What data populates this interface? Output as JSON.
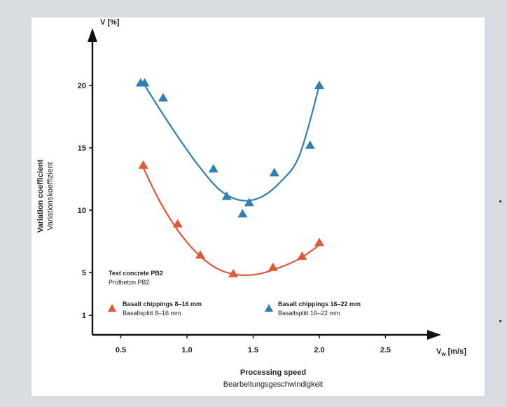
{
  "chart_data": {
    "type": "scatter",
    "title": "",
    "ylabel_en": "Variation coefficient",
    "ylabel_de": "Variationskoeffizient",
    "y_axis_unit": "V [%]",
    "xlabel_en": "Processing speed",
    "xlabel_de": "Bearbeitungsgeschwindigkeit",
    "x_axis_unit": "V",
    "x_axis_unit_sub": "w",
    "x_axis_unit_suffix": "[m/s]",
    "xlim": [
      0,
      3.0
    ],
    "ylim": [
      0,
      24
    ],
    "xticks": [
      "0.5",
      "1.0",
      "1.5",
      "2.0",
      "2.5"
    ],
    "xtick_values": [
      0.5,
      1.0,
      1.5,
      2.0,
      2.5
    ],
    "yticks": [
      "1",
      "5",
      "10",
      "15",
      "20"
    ],
    "ytick_values": [
      1,
      5,
      10,
      15,
      20
    ],
    "grid": false,
    "note": {
      "line1": "Test concrete PB2",
      "line2": "Prüfbeton PB2"
    },
    "series": [
      {
        "name": "Basalt chippings 8–16 mm",
        "name_de": "Basaltsplitt 8–16 mm",
        "color": "#e0573a",
        "marker": "triangle",
        "points": [
          {
            "x": 0.67,
            "y": 13.6
          },
          {
            "x": 0.93,
            "y": 8.9
          },
          {
            "x": 1.1,
            "y": 6.4
          },
          {
            "x": 1.35,
            "y": 4.9
          },
          {
            "x": 1.65,
            "y": 5.4
          },
          {
            "x": 1.87,
            "y": 6.3
          },
          {
            "x": 2.0,
            "y": 7.4
          }
        ],
        "fit": [
          {
            "x": 0.67,
            "y": 13.4
          },
          {
            "x": 0.8,
            "y": 10.6
          },
          {
            "x": 0.95,
            "y": 8.1
          },
          {
            "x": 1.1,
            "y": 6.3
          },
          {
            "x": 1.25,
            "y": 5.2
          },
          {
            "x": 1.4,
            "y": 4.8
          },
          {
            "x": 1.55,
            "y": 4.9
          },
          {
            "x": 1.7,
            "y": 5.4
          },
          {
            "x": 1.85,
            "y": 6.1
          },
          {
            "x": 2.0,
            "y": 7.2
          }
        ]
      },
      {
        "name": "Basalt chippings 16–22 mm",
        "name_de": "Basaltsplitt 16–22 mm",
        "color": "#2f7fb5",
        "marker": "triangle",
        "points": [
          {
            "x": 0.65,
            "y": 20.2
          },
          {
            "x": 0.68,
            "y": 20.2
          },
          {
            "x": 0.82,
            "y": 19.0
          },
          {
            "x": 1.2,
            "y": 13.3
          },
          {
            "x": 1.3,
            "y": 11.1
          },
          {
            "x": 1.42,
            "y": 9.7
          },
          {
            "x": 1.47,
            "y": 10.6
          },
          {
            "x": 1.66,
            "y": 13.0
          },
          {
            "x": 1.93,
            "y": 15.2
          },
          {
            "x": 2.0,
            "y": 20.0
          }
        ],
        "fit": [
          {
            "x": 0.67,
            "y": 20.2
          },
          {
            "x": 0.8,
            "y": 18.0
          },
          {
            "x": 0.95,
            "y": 15.6
          },
          {
            "x": 1.1,
            "y": 13.4
          },
          {
            "x": 1.25,
            "y": 11.6
          },
          {
            "x": 1.4,
            "y": 10.8
          },
          {
            "x": 1.55,
            "y": 11.0
          },
          {
            "x": 1.7,
            "y": 12.2
          },
          {
            "x": 1.85,
            "y": 14.4
          },
          {
            "x": 2.0,
            "y": 20.0
          }
        ]
      }
    ]
  }
}
